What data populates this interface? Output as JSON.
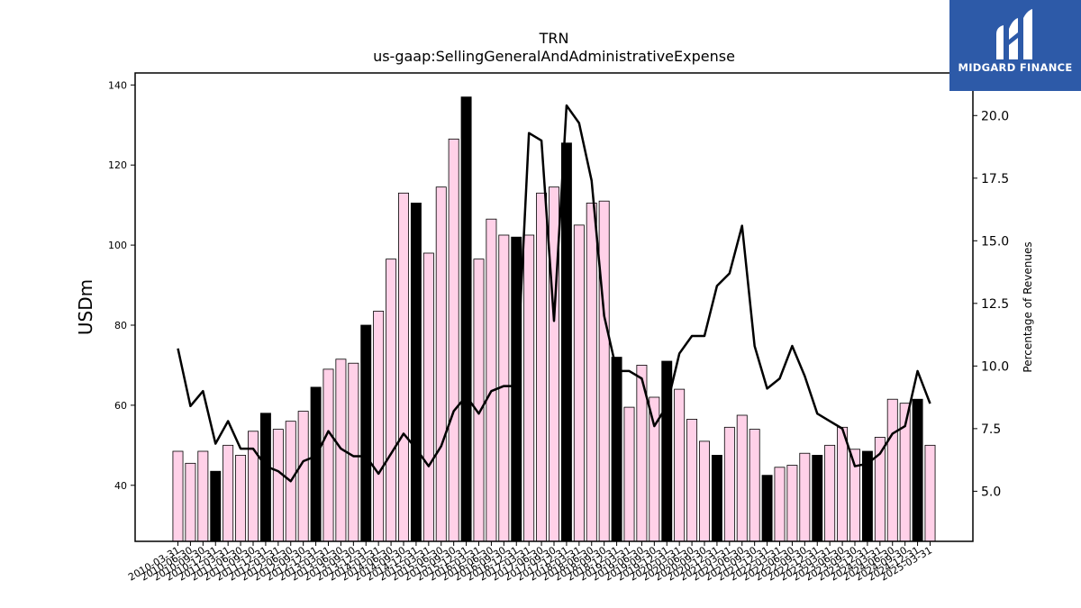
{
  "brand": {
    "name": "MIDGARD FINANCE",
    "logo_icon": "midgard-logo-icon",
    "background": "#2d5aa8"
  },
  "chart_data": {
    "type": "bar",
    "title": "TRN",
    "subtitle": "us-gaap:SellingGeneralAndAdministrativeExpense",
    "ylabel": "USDm",
    "y2label": "Percentage of Revenues",
    "ylim": [
      26,
      143
    ],
    "y2lim": [
      3.0,
      21.7
    ],
    "yticks": [
      40,
      60,
      80,
      100,
      120,
      140
    ],
    "y2ticks": [
      5.0,
      7.5,
      10.0,
      12.5,
      15.0,
      17.5,
      20.0
    ],
    "y2tick_labels": [
      "5.0",
      "7.5",
      "10.0",
      "12.5",
      "15.0",
      "17.5",
      "20.0"
    ],
    "colors": {
      "quarter_bar": "#ffd1e8",
      "annual_bar": "#000000",
      "line": "#000000",
      "edge": "#000000"
    },
    "categories": [
      "2010-03-31",
      "2010-06-30",
      "2010-09-30",
      "2010-12-31",
      "2011-03-31",
      "2011-06-30",
      "2011-09-30",
      "2011-12-31",
      "2012-03-31",
      "2012-06-30",
      "2012-09-30",
      "2012-12-31",
      "2013-03-31",
      "2013-06-30",
      "2013-09-30",
      "2013-12-31",
      "2014-03-31",
      "2014-06-30",
      "2014-09-30",
      "2014-12-31",
      "2015-03-31",
      "2015-06-30",
      "2015-09-30",
      "2015-12-31",
      "2016-03-31",
      "2016-06-30",
      "2016-09-30",
      "2016-12-31",
      "2017-03-31",
      "2017-06-30",
      "2017-09-30",
      "2017-12-31",
      "2018-03-31",
      "2018-06-30",
      "2018-09-30",
      "2018-12-31",
      "2019-03-31",
      "2019-06-30",
      "2019-09-30",
      "2019-12-31",
      "2020-03-31",
      "2020-06-30",
      "2020-09-30",
      "2020-12-31",
      "2021-03-31",
      "2021-06-30",
      "2021-09-30",
      "2021-12-31",
      "2022-03-31",
      "2022-06-30",
      "2022-09-30",
      "2022-12-31",
      "2023-03-31",
      "2023-06-30",
      "2023-09-30",
      "2023-12-31",
      "2024-03-31",
      "2024-06-30",
      "2024-09-30",
      "2024-12-31",
      "2025-03-31"
    ],
    "series": [
      {
        "kind": "bar",
        "axis": "left",
        "values": [
          48.5,
          45.5,
          48.5,
          43.5,
          50,
          47.5,
          53.5,
          58,
          54,
          56,
          58.5,
          64.5,
          69,
          71.5,
          70.5,
          80,
          83.5,
          96.5,
          113,
          110.5,
          98,
          114.5,
          126.5,
          137,
          96.5,
          106.5,
          102.5,
          102,
          102.5,
          113,
          114.5,
          125.5,
          105,
          110.5,
          111,
          72,
          59.5,
          70,
          62,
          71,
          64,
          56.5,
          51,
          47.5,
          54.5,
          57.5,
          54,
          42.5,
          44.5,
          45,
          48,
          47.5,
          50,
          54.5,
          49,
          48.5,
          52,
          61.5,
          60.5,
          61.5,
          50
        ],
        "annual": [
          false,
          false,
          false,
          true,
          false,
          false,
          false,
          true,
          false,
          false,
          false,
          true,
          false,
          false,
          false,
          true,
          false,
          false,
          false,
          true,
          false,
          false,
          false,
          true,
          false,
          false,
          false,
          true,
          false,
          false,
          false,
          true,
          false,
          false,
          false,
          true,
          false,
          false,
          false,
          true,
          false,
          false,
          false,
          true,
          false,
          false,
          false,
          true,
          false,
          false,
          false,
          true,
          false,
          false,
          false,
          true,
          false,
          false,
          false,
          true,
          false
        ]
      },
      {
        "kind": "line",
        "axis": "right",
        "values": [
          10.7,
          8.4,
          9.0,
          6.9,
          7.8,
          6.7,
          6.7,
          6.0,
          5.8,
          5.4,
          6.2,
          6.4,
          7.4,
          6.7,
          6.4,
          6.4,
          5.7,
          6.5,
          7.3,
          6.7,
          6.0,
          6.8,
          8.2,
          8.8,
          8.1,
          9.0,
          9.2,
          9.2,
          19.3,
          19.0,
          11.8,
          20.4,
          19.7,
          17.4,
          12.0,
          9.8,
          9.8,
          9.5,
          7.6,
          8.4,
          10.5,
          11.2,
          11.2,
          13.2,
          13.7,
          15.6,
          10.8,
          9.1,
          9.5,
          10.8,
          9.6,
          8.1,
          7.8,
          7.5,
          6.0,
          6.1,
          6.5,
          7.3,
          7.6,
          9.8,
          8.5
        ]
      }
    ]
  }
}
